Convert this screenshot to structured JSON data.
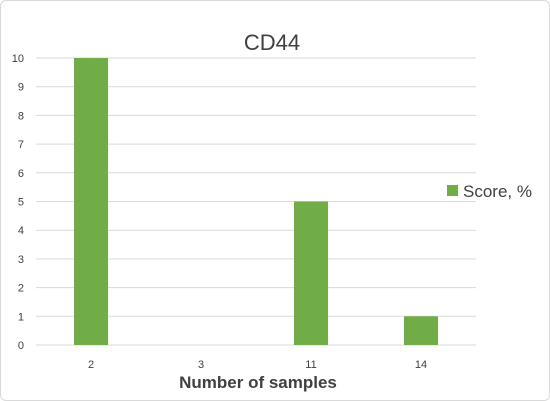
{
  "chart_data": {
    "type": "bar",
    "title": "CD44",
    "xlabel": "Number of samples",
    "ylabel": "",
    "categories": [
      "2",
      "3",
      "11",
      "14"
    ],
    "series": [
      {
        "name": "Score, %",
        "values": [
          10,
          0,
          5,
          1
        ],
        "color": "#70ad47"
      }
    ],
    "ylim": [
      0,
      10
    ],
    "yticks": [
      0,
      1,
      2,
      3,
      4,
      5,
      6,
      7,
      8,
      9,
      10
    ],
    "grid": true,
    "legend_position": "right"
  }
}
